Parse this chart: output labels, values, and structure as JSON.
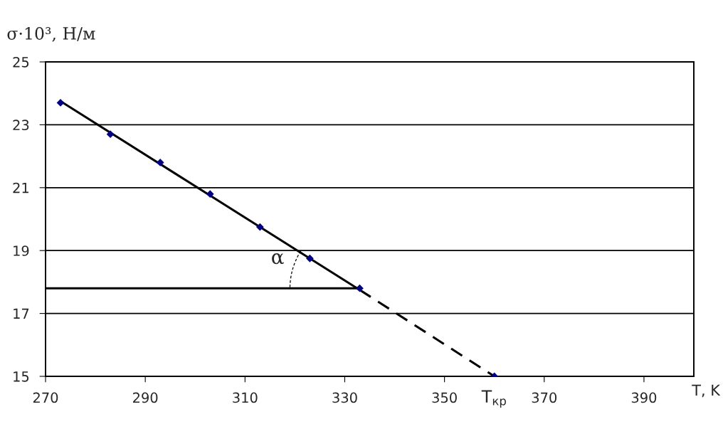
{
  "chart_data": {
    "type": "scatter",
    "xlabel": "T, K",
    "ylabel": "σ·10³, Н/м",
    "xlim": [
      270,
      400
    ],
    "xticks": [
      270,
      290,
      310,
      330,
      350,
      370,
      390
    ],
    "ylim": [
      15,
      25
    ],
    "yticks": [
      15,
      17,
      19,
      21,
      23,
      25
    ],
    "grid": "y",
    "marker": "diamond",
    "series": [
      {
        "color": "#000080",
        "x": [
          273,
          283,
          293,
          303,
          313,
          323,
          333,
          360
        ],
        "values": [
          23.7,
          22.7,
          21.8,
          20.8,
          19.75,
          18.75,
          17.8,
          15
        ]
      },
      {
        "type": "line",
        "color": "#000000",
        "line_style": "solid",
        "marker": "none",
        "x": [
          273,
          333
        ],
        "values": [
          23.75,
          17.75
        ]
      },
      {
        "type": "line",
        "color": "#000000",
        "line_style": "dashed",
        "marker": "none",
        "x": [
          333,
          360
        ],
        "values": [
          17.75,
          15
        ]
      },
      {
        "type": "line",
        "color": "#000000",
        "line_style": "solid",
        "marker": "none",
        "x": [
          270,
          333
        ],
        "values": [
          17.8,
          17.8
        ]
      }
    ],
    "annotations": [
      "α",
      {
        "text": "T$_{кр}$",
        "x": 360,
        "y": 15
      }
    ]
  }
}
